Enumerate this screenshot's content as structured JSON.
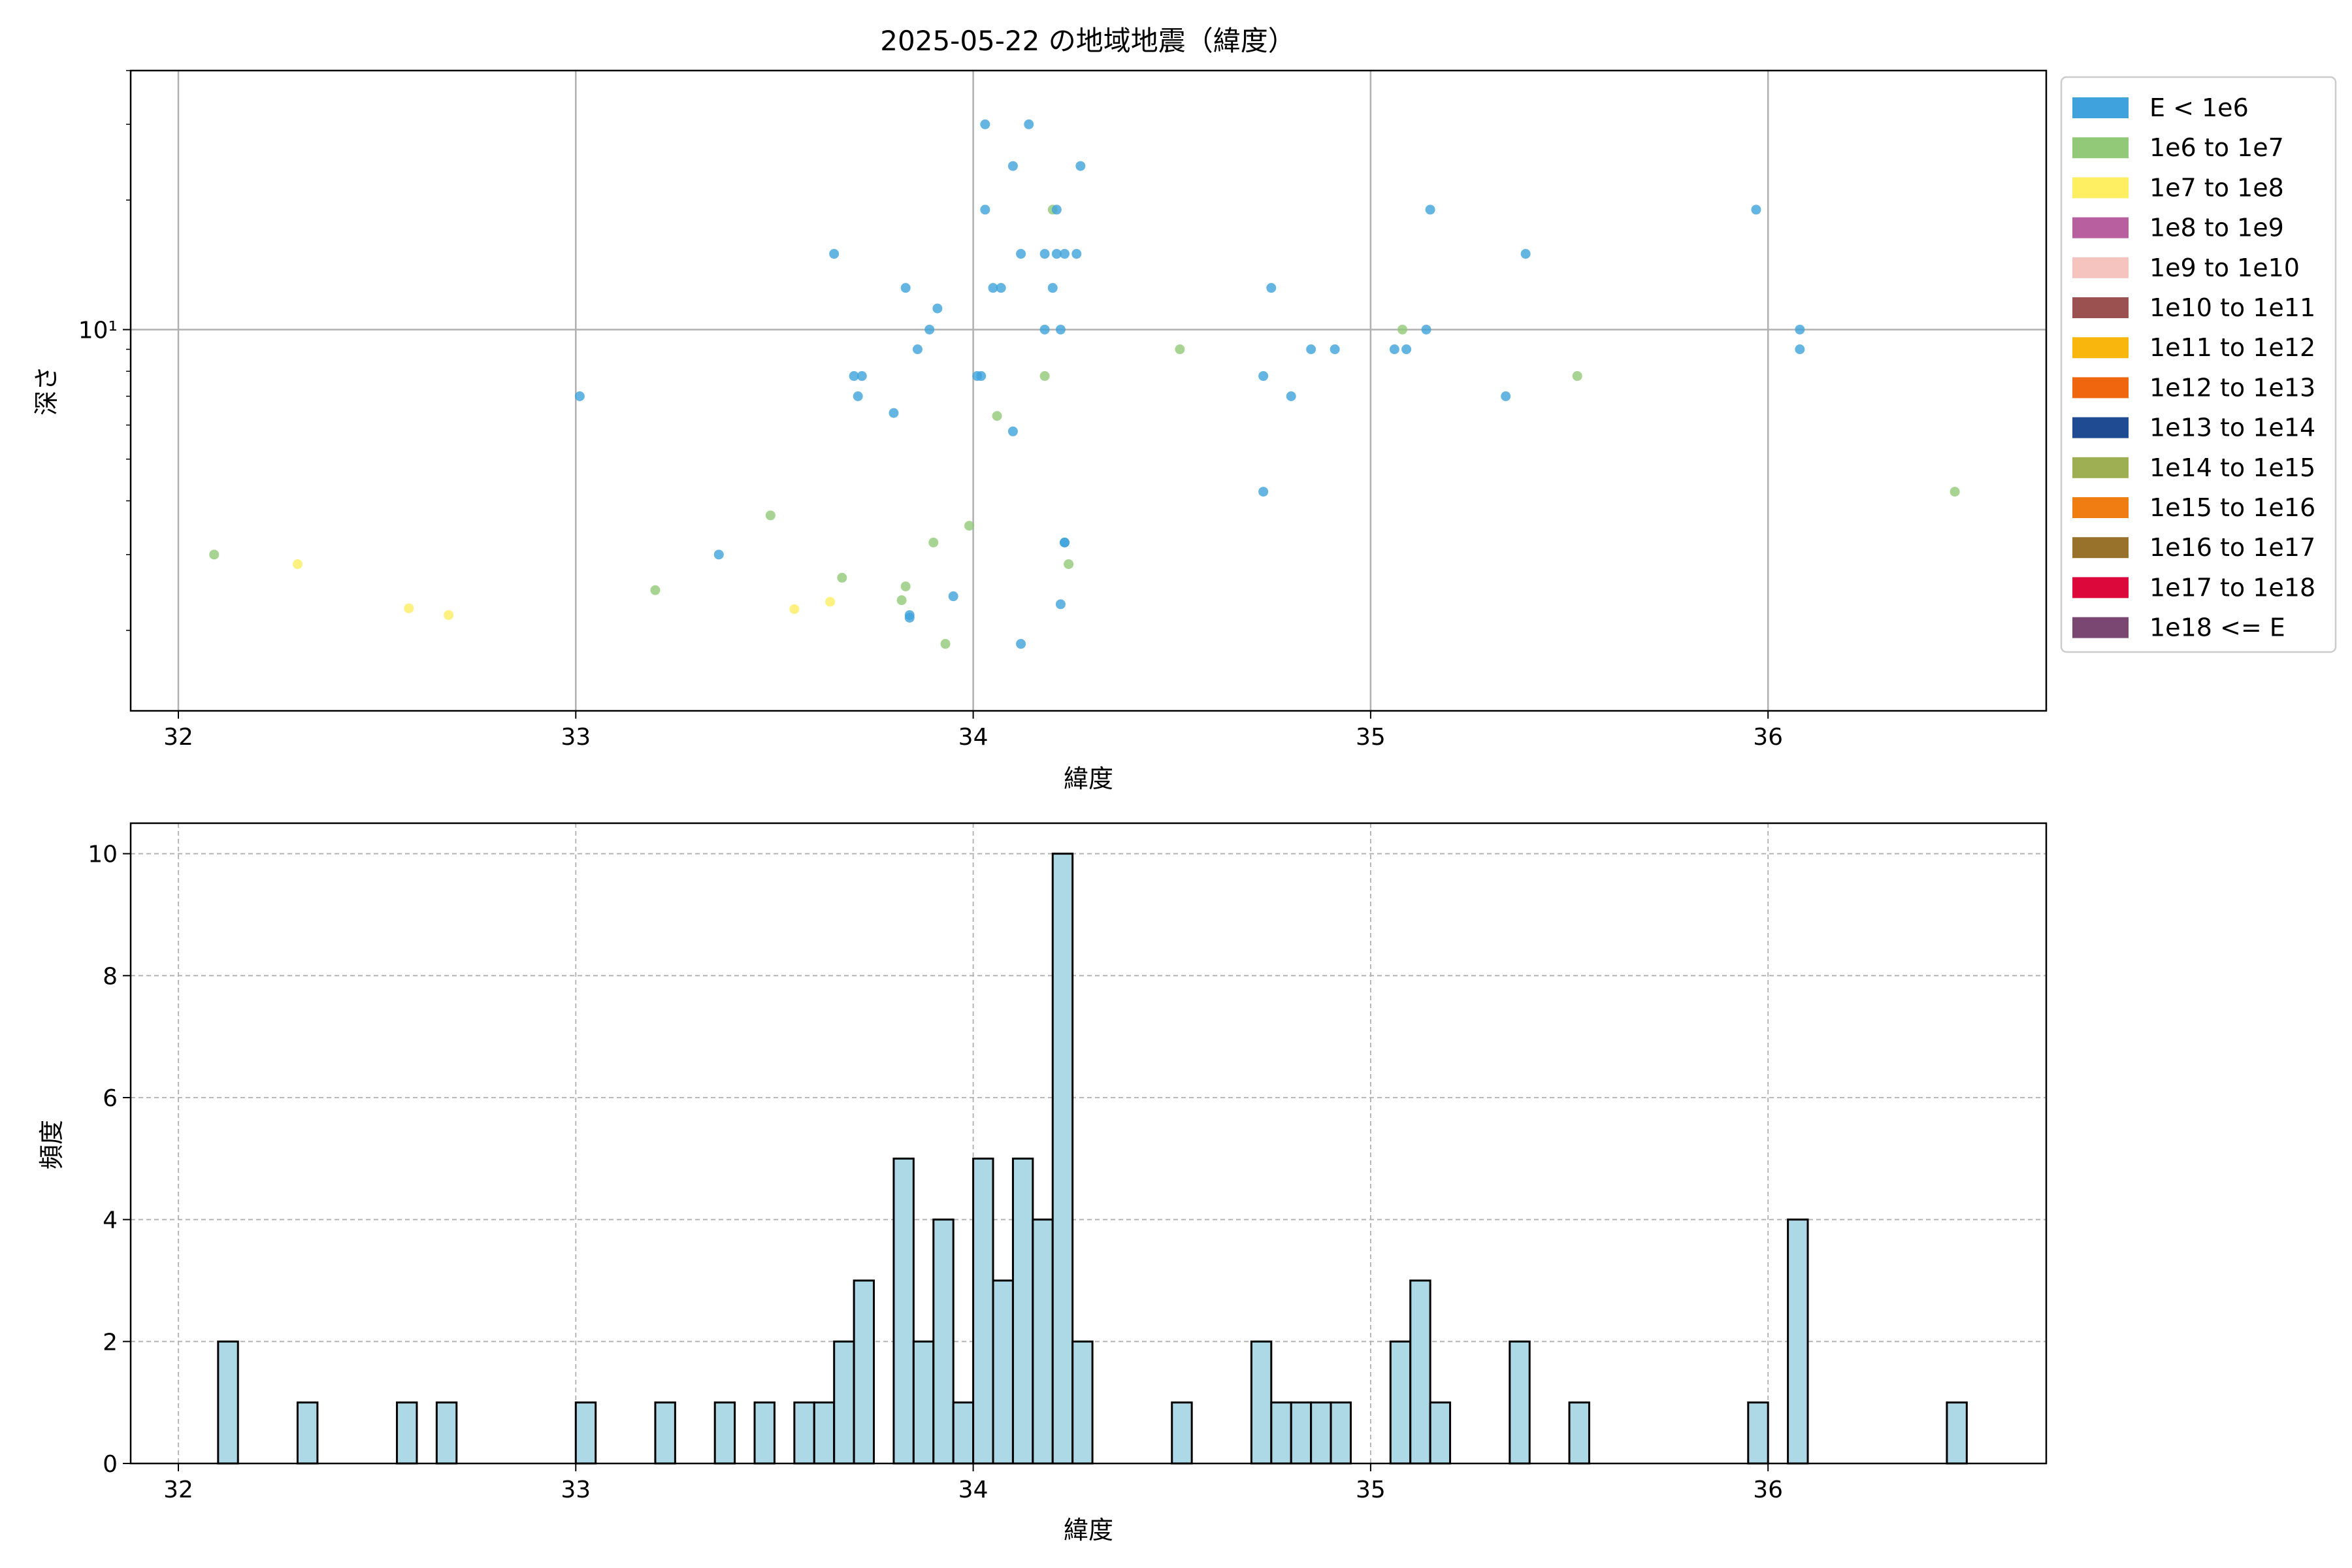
{
  "chart_data": [
    {
      "type": "scatter",
      "title": "2025-05-22 の地域地震（緯度）",
      "xlabel": "緯度",
      "ylabel": "深さ",
      "xlim": [
        31.88,
        36.7
      ],
      "ylim": [
        1.3,
        40
      ],
      "yscale": "log",
      "grid": true,
      "x_ticks": [
        32,
        33,
        34,
        35,
        36
      ],
      "y_ticks": [
        {
          "value": 10,
          "label": "10¹"
        }
      ],
      "legend_position": "outside-right",
      "legend": [
        {
          "label": "E < 1e6",
          "color": "#3fa2dc"
        },
        {
          "label": "1e6 to 1e7",
          "color": "#91c978"
        },
        {
          "label": "1e7 to 1e8",
          "color": "#fdee62"
        },
        {
          "label": "1e8 to 1e9",
          "color": "#b8609f"
        },
        {
          "label": "1e9 to 1e10",
          "color": "#f6c4bf"
        },
        {
          "label": "1e10 to 1e11",
          "color": "#9b514f"
        },
        {
          "label": "1e11 to 1e12",
          "color": "#f9b60d"
        },
        {
          "label": "1e12 to 1e13",
          "color": "#ef660f"
        },
        {
          "label": "1e13 to 1e14",
          "color": "#1f4b93"
        },
        {
          "label": "1e14 to 1e15",
          "color": "#9daf52"
        },
        {
          "label": "1e15 to 1e16",
          "color": "#ef7d12"
        },
        {
          "label": "1e16 to 1e17",
          "color": "#98712b"
        },
        {
          "label": "1e17 to 1e18",
          "color": "#dc073b"
        },
        {
          "label": "1e18 <= E",
          "color": "#7a4672"
        }
      ],
      "points": [
        [
          34.03,
          30,
          0
        ],
        [
          34.14,
          30,
          0
        ],
        [
          34.1,
          24,
          0
        ],
        [
          34.27,
          24,
          0
        ],
        [
          34.03,
          19,
          0
        ],
        [
          34.2,
          19,
          1
        ],
        [
          34.21,
          19,
          0
        ],
        [
          35.15,
          19,
          0
        ],
        [
          35.97,
          19,
          0
        ],
        [
          33.65,
          15,
          0
        ],
        [
          34.12,
          15,
          0
        ],
        [
          34.18,
          15,
          0
        ],
        [
          34.21,
          15,
          0
        ],
        [
          34.23,
          15,
          0
        ],
        [
          34.26,
          15,
          0
        ],
        [
          35.39,
          15,
          0
        ],
        [
          33.83,
          12.5,
          0
        ],
        [
          34.05,
          12.5,
          0
        ],
        [
          34.07,
          12.5,
          0
        ],
        [
          34.2,
          12.5,
          0
        ],
        [
          34.75,
          12.5,
          0
        ],
        [
          33.91,
          11.2,
          0
        ],
        [
          33.89,
          10,
          0
        ],
        [
          34.18,
          10,
          0
        ],
        [
          34.22,
          10,
          0
        ],
        [
          35.08,
          10,
          1
        ],
        [
          35.14,
          10,
          0
        ],
        [
          36.08,
          10,
          0
        ],
        [
          33.86,
          9.0,
          0
        ],
        [
          34.52,
          9.0,
          1
        ],
        [
          34.85,
          9.0,
          0
        ],
        [
          34.91,
          9.0,
          0
        ],
        [
          35.06,
          9.0,
          0
        ],
        [
          35.09,
          9.0,
          0
        ],
        [
          36.08,
          9.0,
          0
        ],
        [
          33.7,
          7.8,
          0
        ],
        [
          33.72,
          7.8,
          0
        ],
        [
          34.01,
          7.8,
          0
        ],
        [
          34.02,
          7.8,
          0
        ],
        [
          34.18,
          7.8,
          1
        ],
        [
          34.73,
          7.8,
          0
        ],
        [
          35.52,
          7.8,
          1
        ],
        [
          33.01,
          7.0,
          0
        ],
        [
          33.71,
          7.0,
          0
        ],
        [
          34.8,
          7.0,
          0
        ],
        [
          35.34,
          7.0,
          0
        ],
        [
          33.8,
          6.4,
          0
        ],
        [
          34.06,
          6.3,
          1
        ],
        [
          34.1,
          5.8,
          0
        ],
        [
          34.73,
          4.2,
          0
        ],
        [
          36.47,
          4.2,
          1
        ],
        [
          33.49,
          3.7,
          1
        ],
        [
          33.99,
          3.5,
          1
        ],
        [
          33.9,
          3.2,
          1
        ],
        [
          34.23,
          3.2,
          0
        ],
        [
          34.23,
          3.2,
          0
        ],
        [
          32.09,
          3.0,
          1
        ],
        [
          33.36,
          3.0,
          0
        ],
        [
          32.3,
          2.85,
          2
        ],
        [
          34.24,
          2.85,
          1
        ],
        [
          33.67,
          2.65,
          1
        ],
        [
          33.83,
          2.53,
          1
        ],
        [
          33.2,
          2.48,
          1
        ],
        [
          33.95,
          2.4,
          0
        ],
        [
          33.82,
          2.35,
          1
        ],
        [
          33.64,
          2.33,
          2
        ],
        [
          34.22,
          2.3,
          0
        ],
        [
          32.58,
          2.25,
          2
        ],
        [
          33.55,
          2.24,
          2
        ],
        [
          32.68,
          2.17,
          2
        ],
        [
          33.84,
          2.17,
          0
        ],
        [
          33.84,
          2.14,
          0
        ],
        [
          33.93,
          1.86,
          1
        ],
        [
          34.12,
          1.86,
          0
        ]
      ]
    },
    {
      "type": "bar",
      "title": "",
      "xlabel": "緯度",
      "ylabel": "頻度",
      "xlim": [
        31.88,
        36.7
      ],
      "ylim": [
        0,
        10.5
      ],
      "grid": true,
      "x_ticks": [
        32,
        33,
        34,
        35,
        36
      ],
      "y_ticks": [
        0,
        2,
        4,
        6,
        8,
        10
      ],
      "bar_color": "#add8e6",
      "bin_width": 0.05,
      "bars": [
        [
          32.1,
          2
        ],
        [
          32.3,
          1
        ],
        [
          32.55,
          1
        ],
        [
          32.65,
          1
        ],
        [
          33.0,
          1
        ],
        [
          33.2,
          1
        ],
        [
          33.35,
          1
        ],
        [
          33.45,
          1
        ],
        [
          33.55,
          1
        ],
        [
          33.6,
          1
        ],
        [
          33.65,
          2
        ],
        [
          33.7,
          3
        ],
        [
          33.8,
          5
        ],
        [
          33.85,
          2
        ],
        [
          33.9,
          4
        ],
        [
          33.95,
          1
        ],
        [
          34.0,
          5
        ],
        [
          34.05,
          3
        ],
        [
          34.1,
          5
        ],
        [
          34.15,
          4
        ],
        [
          34.2,
          10
        ],
        [
          34.25,
          2
        ],
        [
          34.5,
          1
        ],
        [
          34.7,
          2
        ],
        [
          34.75,
          1
        ],
        [
          34.8,
          1
        ],
        [
          34.85,
          1
        ],
        [
          34.9,
          1
        ],
        [
          35.05,
          2
        ],
        [
          35.1,
          3
        ],
        [
          35.15,
          1
        ],
        [
          35.35,
          2
        ],
        [
          35.5,
          1
        ],
        [
          35.95,
          1
        ],
        [
          36.05,
          4
        ],
        [
          36.45,
          1
        ]
      ]
    }
  ]
}
